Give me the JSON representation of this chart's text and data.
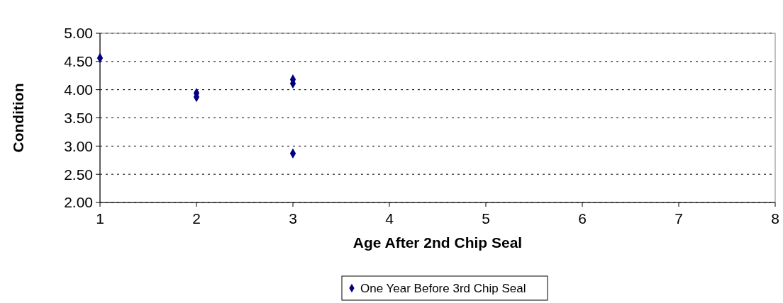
{
  "chart_data": {
    "type": "scatter",
    "xlabel": "Age After 2nd Chip Seal",
    "ylabel": "Condition",
    "series": [
      {
        "name": "One Year Before 3rd Chip Seal",
        "color": "#000080",
        "x": [
          1,
          2,
          2,
          3,
          3,
          3
        ],
        "values": [
          4.56,
          3.94,
          3.87,
          4.18,
          4.11,
          2.87
        ]
      }
    ],
    "xlim": [
      1,
      8
    ],
    "xticks": [
      1,
      2,
      3,
      4,
      5,
      6,
      7,
      8
    ],
    "ylim": [
      2,
      5
    ],
    "yticks": [
      {
        "value": 2,
        "label": "2.00"
      },
      {
        "value": 2.5,
        "label": "2.50"
      },
      {
        "value": 3,
        "label": "3.00"
      },
      {
        "value": 3.5,
        "label": "3.50"
      },
      {
        "value": 4,
        "label": "4.00"
      },
      {
        "value": 4.5,
        "label": "4.50"
      },
      {
        "value": 5,
        "label": "5.00"
      }
    ],
    "grid": "y",
    "legend": "bottom",
    "marker": "diamond"
  }
}
